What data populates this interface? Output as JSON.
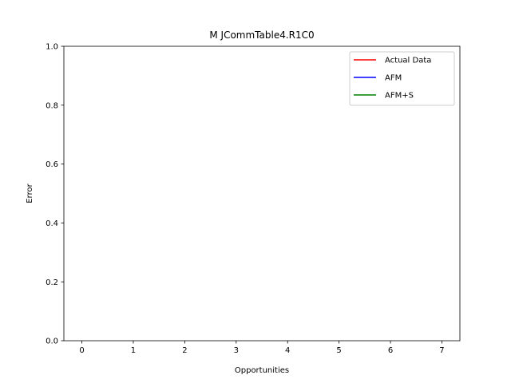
{
  "chart_data": {
    "type": "line",
    "title": "M  JCommTable4.R1C0",
    "xlabel": "Opportunities",
    "ylabel": "Error",
    "xlim": [
      -0.35,
      7.35
    ],
    "ylim": [
      0.0,
      1.0
    ],
    "x_ticks": [
      0,
      1,
      2,
      3,
      4,
      5,
      6,
      7
    ],
    "y_ticks": [
      "0.0",
      "0.2",
      "0.4",
      "0.6",
      "0.8",
      "1.0"
    ],
    "grid": false,
    "legend_position": "top-right",
    "series": [
      {
        "name": "Actual Data",
        "color": "#ff0000",
        "x": [],
        "y": []
      },
      {
        "name": "AFM",
        "color": "#0000ff",
        "x": [],
        "y": []
      },
      {
        "name": "AFM+S",
        "color": "#008000",
        "x": [],
        "y": []
      }
    ]
  }
}
